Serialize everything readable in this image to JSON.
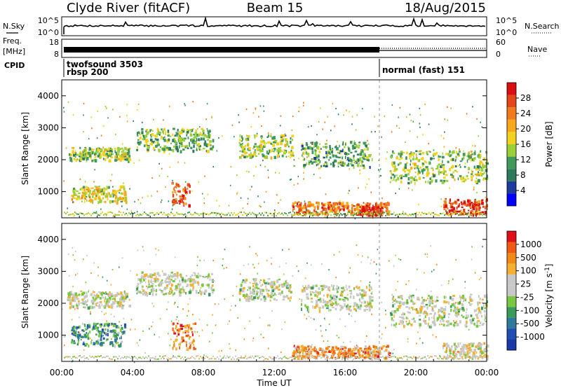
{
  "header": {
    "station": "Clyde River (fitACF)",
    "beam": "Beam 15",
    "date": "18/Aug/2015"
  },
  "top_panels": {
    "nsky_label": "N.Sky",
    "nsky_ticks": [
      "10^5",
      "10^0"
    ],
    "nsearch_label": "N.Search",
    "nsearch_ticks": [
      "10^5",
      "10^0"
    ],
    "freq_label": "Freq.",
    "freq_unit": "[MHz]",
    "freq_ticks": [
      "18",
      "8"
    ],
    "nave_label": "Nave",
    "nave_ticks": [
      "60",
      "0"
    ],
    "cpid_label": "CPID",
    "cpid_entries": [
      "twofsound 3503",
      "rbsp 200",
      "normal (fast) 151"
    ]
  },
  "colors": {
    "power": [
      "#0000ff",
      "#1e3c9c",
      "#2f7a5c",
      "#3f9a5a",
      "#9bcf3a",
      "#f2d21c",
      "#f7a81b",
      "#f07a1d",
      "#e4461c",
      "#d90f12"
    ],
    "velocity": [
      "#e0101b",
      "#f05a14",
      "#f38a18",
      "#f6b030",
      "#c8c8c8",
      "#c8c8c8",
      "#79c83f",
      "#3a9a5a",
      "#2f7a9c",
      "#1f4fb0",
      "#1b3aa8"
    ]
  },
  "chart_data": [
    {
      "type": "heatmap",
      "panel": "power",
      "xlabel": "",
      "ylabel": "Slant Range [km]",
      "xlim": [
        0,
        24
      ],
      "ylim": [
        180,
        4500
      ],
      "y_ticks": [
        "1000",
        "2000",
        "3000",
        "4000"
      ],
      "colorbar": {
        "label": "Power [dB]",
        "ticks": [
          "4",
          "8",
          "12",
          "16",
          "20",
          "24",
          "28"
        ]
      },
      "bands": [
        {
          "t0": 0.3,
          "t1": 3.8,
          "r0": 2000,
          "r1": 2400,
          "level": 0.45
        },
        {
          "t0": 0.5,
          "t1": 3.6,
          "r0": 700,
          "r1": 1200,
          "level": 0.55
        },
        {
          "t0": 4.2,
          "t1": 8.5,
          "r0": 2300,
          "r1": 3000,
          "level": 0.4
        },
        {
          "t0": 6.2,
          "t1": 7.2,
          "r0": 600,
          "r1": 1300,
          "level": 0.85
        },
        {
          "t0": 10.0,
          "t1": 13.0,
          "r0": 2100,
          "r1": 2800,
          "level": 0.45
        },
        {
          "t0": 13.5,
          "t1": 17.5,
          "r0": 1800,
          "r1": 2600,
          "level": 0.35
        },
        {
          "t0": 13.0,
          "t1": 18.5,
          "r0": 300,
          "r1": 700,
          "level": 0.75
        },
        {
          "t0": 16.8,
          "t1": 18.0,
          "r0": 300,
          "r1": 600,
          "level": 0.95
        },
        {
          "t0": 18.5,
          "t1": 24.0,
          "r0": 1300,
          "r1": 2300,
          "level": 0.45
        },
        {
          "t0": 21.5,
          "t1": 24.0,
          "r0": 300,
          "r1": 800,
          "level": 0.85
        }
      ]
    },
    {
      "type": "heatmap",
      "panel": "velocity",
      "xlabel": "Time UT",
      "ylabel": "Slant Range [km]",
      "xlim": [
        0,
        24
      ],
      "ylim": [
        180,
        4500
      ],
      "x_ticks": [
        "00:00",
        "04:00",
        "08:00",
        "12:00",
        "16:00",
        "20:00",
        "00:00"
      ],
      "y_ticks": [
        "1000",
        "2000",
        "3000",
        "4000"
      ],
      "colorbar": {
        "label": "Velocity [m s",
        "label_sup": "-1",
        "label_end": "]",
        "ticks": [
          "1000",
          "500",
          "100",
          "25",
          "-25",
          "-100",
          "-500",
          "-1000"
        ]
      },
      "bands": [
        {
          "t0": 0.3,
          "t1": 3.8,
          "r0": 1900,
          "r1": 2400,
          "level": 0.48
        },
        {
          "t0": 0.5,
          "t1": 3.6,
          "r0": 700,
          "r1": 1400,
          "level": 0.7
        },
        {
          "t0": 4.2,
          "t1": 8.5,
          "r0": 2300,
          "r1": 3000,
          "level": 0.48
        },
        {
          "t0": 6.2,
          "t1": 7.5,
          "r0": 600,
          "r1": 1400,
          "level": 0.2
        },
        {
          "t0": 10.0,
          "t1": 13.0,
          "r0": 2100,
          "r1": 2800,
          "level": 0.48
        },
        {
          "t0": 13.5,
          "t1": 17.5,
          "r0": 1800,
          "r1": 2600,
          "level": 0.48
        },
        {
          "t0": 13.0,
          "t1": 18.5,
          "r0": 300,
          "r1": 700,
          "level": 0.25
        },
        {
          "t0": 18.5,
          "t1": 24.0,
          "r0": 1300,
          "r1": 2300,
          "level": 0.48
        },
        {
          "t0": 21.5,
          "t1": 24.0,
          "r0": 300,
          "r1": 800,
          "level": 0.42
        }
      ]
    }
  ]
}
